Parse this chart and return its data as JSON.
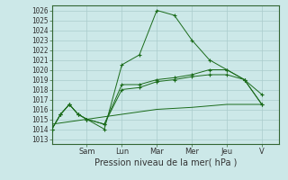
{
  "title": "",
  "xlabel": "Pression niveau de la mer( hPa )",
  "ylabel": "",
  "bg_color": "#cce8e8",
  "plot_bg_color": "#cce8e8",
  "grid_color": "#aacccc",
  "line_color": "#1a6b1a",
  "ylim": [
    1012.5,
    1026.5
  ],
  "yticks": [
    1013,
    1014,
    1015,
    1016,
    1017,
    1018,
    1019,
    1020,
    1021,
    1022,
    1023,
    1024,
    1025,
    1026
  ],
  "x_day_labels": [
    "Sam",
    "Lun",
    "Mar",
    "Mer",
    "Jeu",
    "V"
  ],
  "x_day_positions": [
    2.0,
    4.0,
    6.0,
    8.0,
    10.0,
    12.0
  ],
  "xlim": [
    0,
    13
  ],
  "series": [
    {
      "x": [
        0,
        0.5,
        1,
        1.5,
        2,
        3,
        4,
        5,
        6,
        7,
        8,
        9,
        10,
        11,
        12
      ],
      "y": [
        1014.0,
        1015.5,
        1016.5,
        1015.5,
        1015.0,
        1014.0,
        1020.5,
        1021.5,
        1026.0,
        1025.5,
        1023.0,
        1021.0,
        1020.0,
        1019.0,
        1017.5
      ],
      "marker": "+"
    },
    {
      "x": [
        0,
        0.5,
        1,
        1.5,
        2,
        3,
        4,
        5,
        6,
        7,
        8,
        9,
        10,
        11,
        12
      ],
      "y": [
        1014.0,
        1015.5,
        1016.5,
        1015.5,
        1015.0,
        1014.5,
        1018.5,
        1018.5,
        1019.0,
        1019.2,
        1019.5,
        1020.0,
        1020.0,
        1019.0,
        1016.5
      ],
      "marker": "+"
    },
    {
      "x": [
        0,
        0.5,
        1,
        1.5,
        2,
        3,
        4,
        5,
        6,
        7,
        8,
        9,
        10,
        11,
        12
      ],
      "y": [
        1014.0,
        1015.5,
        1016.5,
        1015.5,
        1015.0,
        1014.5,
        1018.0,
        1018.2,
        1018.8,
        1019.0,
        1019.3,
        1019.5,
        1019.5,
        1019.0,
        1016.5
      ],
      "marker": "+"
    },
    {
      "x": [
        0,
        2,
        4,
        6,
        8,
        10,
        12
      ],
      "y": [
        1014.5,
        1015.0,
        1015.5,
        1016.0,
        1016.2,
        1016.5,
        1016.5
      ],
      "marker": null
    }
  ],
  "tick_fontsize": 5.5,
  "xlabel_fontsize": 7.0,
  "spine_color": "#336633",
  "tick_color": "#336633"
}
